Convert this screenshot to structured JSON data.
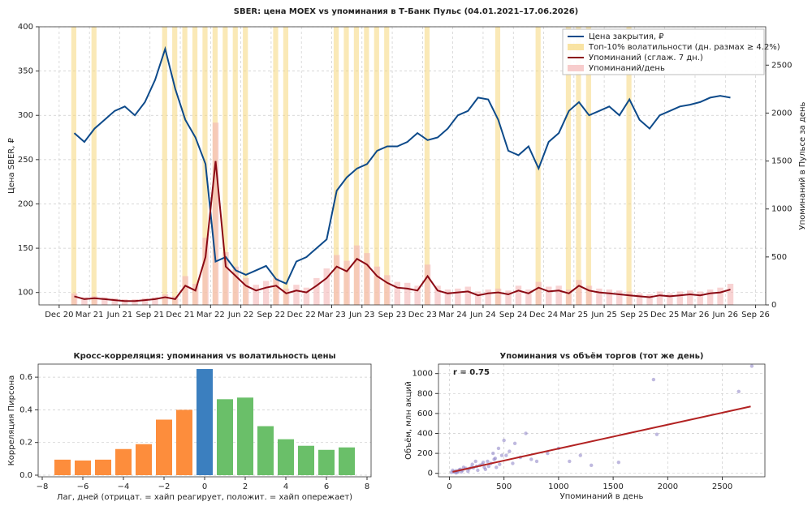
{
  "chart_data": [
    {
      "type": "line",
      "title": "SBER: цена MOEX vs упоминания в Т-Банк Пульс (04.01.2021–17.06.2026)",
      "ylabel": "Цена SBER, ₽",
      "y2label": "Упоминаний в Пульсе за день",
      "x": [
        "2021-01",
        "2021-02",
        "2021-03",
        "2021-04",
        "2021-05",
        "2021-06",
        "2021-07",
        "2021-08",
        "2021-09",
        "2021-10",
        "2021-11",
        "2021-12",
        "2022-01",
        "2022-02",
        "2022-03",
        "2022-04",
        "2022-05",
        "2022-06",
        "2022-07",
        "2022-08",
        "2022-09",
        "2022-10",
        "2022-11",
        "2022-12",
        "2023-01",
        "2023-02",
        "2023-03",
        "2023-04",
        "2023-05",
        "2023-06",
        "2023-07",
        "2023-08",
        "2023-09",
        "2023-10",
        "2023-11",
        "2023-12",
        "2024-01",
        "2024-02",
        "2024-03",
        "2024-04",
        "2024-05",
        "2024-06",
        "2024-07",
        "2024-08",
        "2024-09",
        "2024-10",
        "2024-11",
        "2024-12",
        "2025-01",
        "2025-02",
        "2025-03",
        "2025-04",
        "2025-05",
        "2025-06",
        "2025-07",
        "2025-08",
        "2025-09",
        "2025-10",
        "2025-11",
        "2025-12",
        "2026-01",
        "2026-02",
        "2026-03",
        "2026-04",
        "2026-05",
        "2026-06"
      ],
      "xlim": [
        "2020-10",
        "2026-10"
      ],
      "xticks": [
        {
          "value": "2020-12",
          "label": "Dec 20"
        },
        {
          "value": "2021-03",
          "label": "Mar 21"
        },
        {
          "value": "2021-06",
          "label": "Jun 21"
        },
        {
          "value": "2021-09",
          "label": "Sep 21"
        },
        {
          "value": "2021-12",
          "label": "Dec 21"
        },
        {
          "value": "2022-03",
          "label": "Mar 22"
        },
        {
          "value": "2022-06",
          "label": "Jun 22"
        },
        {
          "value": "2022-09",
          "label": "Sep 22"
        },
        {
          "value": "2022-12",
          "label": "Dec 22"
        },
        {
          "value": "2023-03",
          "label": "Mar 23"
        },
        {
          "value": "2023-06",
          "label": "Jun 23"
        },
        {
          "value": "2023-09",
          "label": "Sep 23"
        },
        {
          "value": "2023-12",
          "label": "Dec 23"
        },
        {
          "value": "2024-03",
          "label": "Mar 24"
        },
        {
          "value": "2024-06",
          "label": "Jun 24"
        },
        {
          "value": "2024-09",
          "label": "Sep 24"
        },
        {
          "value": "2024-12",
          "label": "Dec 24"
        },
        {
          "value": "2025-03",
          "label": "Mar 25"
        },
        {
          "value": "2025-06",
          "label": "Jun 25"
        },
        {
          "value": "2025-09",
          "label": "Sep 25"
        },
        {
          "value": "2025-12",
          "label": "Dec 25"
        },
        {
          "value": "2026-03",
          "label": "Mar 26"
        },
        {
          "value": "2026-06",
          "label": "Jun 26"
        },
        {
          "value": "2026-09",
          "label": "Sep 26"
        }
      ],
      "ylim": [
        86,
        400
      ],
      "yticks": [
        100,
        150,
        200,
        250,
        300,
        350,
        400
      ],
      "y2lim": [
        0,
        2900
      ],
      "y2ticks": [
        0,
        500,
        1000,
        1500,
        2000,
        2500
      ],
      "grid": true,
      "legend": "upper right",
      "series": [
        {
          "name": "Цена закрытия, ₽",
          "color": "#0d4a8a",
          "values": [
            280,
            270,
            285,
            295,
            305,
            310,
            300,
            315,
            340,
            375,
            330,
            295,
            275,
            245,
            135,
            140,
            125,
            120,
            125,
            130,
            115,
            110,
            135,
            140,
            150,
            160,
            215,
            230,
            240,
            245,
            260,
            265,
            265,
            270,
            280,
            272,
            275,
            285,
            300,
            305,
            320,
            318,
            295,
            260,
            255,
            265,
            240,
            270,
            280,
            305,
            315,
            300,
            305,
            310,
            300,
            318,
            295,
            285,
            300,
            305,
            310,
            312,
            315,
            320,
            322,
            320
          ]
        },
        {
          "name": "Упоминаний (сглаж. 7 дн.)",
          "color": "#8b0a14",
          "axis": "y2",
          "values": [
            90,
            60,
            70,
            60,
            50,
            40,
            40,
            50,
            60,
            80,
            60,
            200,
            150,
            500,
            1500,
            400,
            300,
            200,
            150,
            180,
            200,
            120,
            150,
            130,
            200,
            280,
            400,
            350,
            480,
            420,
            300,
            230,
            180,
            170,
            150,
            300,
            150,
            120,
            130,
            140,
            100,
            120,
            130,
            110,
            150,
            120,
            180,
            140,
            150,
            120,
            200,
            150,
            130,
            120,
            110,
            100,
            90,
            80,
            100,
            90,
            100,
            110,
            100,
            120,
            130,
            160
          ]
        },
        {
          "name": "Упоминаний/день",
          "color": "#f4b6b6",
          "axis": "y2",
          "type": "bar",
          "values": [
            120,
            80,
            90,
            80,
            70,
            60,
            60,
            70,
            80,
            110,
            90,
            300,
            220,
            700,
            1900,
            550,
            400,
            280,
            210,
            250,
            280,
            170,
            210,
            180,
            280,
            380,
            520,
            460,
            620,
            540,
            400,
            310,
            240,
            230,
            200,
            420,
            200,
            160,
            170,
            190,
            140,
            160,
            170,
            150,
            200,
            160,
            240,
            190,
            200,
            160,
            260,
            200,
            170,
            160,
            150,
            140,
            120,
            110,
            140,
            120,
            140,
            150,
            140,
            160,
            180,
            220
          ]
        }
      ],
      "highlight": {
        "name": "Топ-10% волатильности (дн. размах ≥ 4.2%)",
        "color": "#f6d77c",
        "x": [
          "2021-01",
          "2021-03",
          "2021-10",
          "2021-11",
          "2021-12",
          "2022-01",
          "2022-02",
          "2022-03",
          "2022-04",
          "2022-05",
          "2022-06",
          "2022-09",
          "2022-10",
          "2023-03",
          "2023-04",
          "2023-05",
          "2023-06",
          "2023-07",
          "2023-08",
          "2023-12",
          "2024-07",
          "2024-11",
          "2025-02",
          "2025-03",
          "2025-04",
          "2025-08"
        ]
      }
    },
    {
      "type": "bar",
      "title": "Кросс-корреляция: упоминания vs волатильность цены",
      "xlabel": "Лаг, дней  (отрицат. = хайп реагирует, положит. = хайп опережает)",
      "ylabel": "Корреляция Пирсона",
      "x": [
        -7,
        -6,
        -5,
        -4,
        -3,
        -2,
        -1,
        0,
        1,
        2,
        3,
        4,
        5,
        6,
        7
      ],
      "values": [
        0.095,
        0.09,
        0.095,
        0.16,
        0.19,
        0.34,
        0.4,
        0.65,
        0.465,
        0.475,
        0.3,
        0.22,
        0.18,
        0.155,
        0.17
      ],
      "colors": [
        "#fd8d3c",
        "#fd8d3c",
        "#fd8d3c",
        "#fd8d3c",
        "#fd8d3c",
        "#fd8d3c",
        "#fd8d3c",
        "#3b7fbf",
        "#6abf69",
        "#6abf69",
        "#6abf69",
        "#6abf69",
        "#6abf69",
        "#6abf69",
        "#6abf69"
      ],
      "xlim": [
        -8.2,
        8.2
      ],
      "xticks": [
        {
          "value": -8,
          "label": "−8"
        },
        {
          "value": -6,
          "label": "−6"
        },
        {
          "value": -4,
          "label": "−4"
        },
        {
          "value": -2,
          "label": "−2"
        },
        0,
        2,
        4,
        6,
        8
      ],
      "ylim": [
        -0.01,
        0.68
      ],
      "yticks": [
        {
          "value": 0,
          "label": "0.0"
        },
        0.2,
        0.4,
        0.6
      ],
      "grid": true
    },
    {
      "type": "scatter",
      "title": "Упоминания vs объём торгов (тот же день)",
      "xlabel": "Упоминаний в день",
      "ylabel": "Объём, млн акций",
      "annotation": "r = 0.75",
      "color": "#8a7fc4",
      "x": [
        20,
        40,
        60,
        80,
        100,
        120,
        150,
        180,
        200,
        220,
        250,
        280,
        300,
        320,
        350,
        380,
        400,
        420,
        450,
        480,
        500,
        550,
        600,
        650,
        700,
        750,
        800,
        900,
        1000,
        1100,
        1200,
        1300,
        1550,
        1900,
        1870,
        2650,
        2770,
        60,
        90,
        130,
        170,
        210,
        260,
        310,
        360,
        410,
        460,
        520,
        30,
        70,
        110,
        240,
        330,
        430,
        580
      ],
      "values": [
        10,
        15,
        25,
        20,
        40,
        30,
        50,
        45,
        60,
        55,
        70,
        80,
        90,
        60,
        120,
        100,
        200,
        150,
        250,
        180,
        330,
        220,
        300,
        160,
        400,
        140,
        120,
        200,
        250,
        120,
        180,
        80,
        110,
        390,
        940,
        820,
        1075,
        5,
        35,
        60,
        20,
        90,
        30,
        110,
        70,
        140,
        90,
        180,
        30,
        10,
        15,
        120,
        40,
        60,
        100
      ],
      "xlim": [
        -100,
        2890
      ],
      "xticks": [
        0,
        500,
        1000,
        1500,
        2000,
        2500
      ],
      "ylim": [
        -35,
        1095
      ],
      "yticks": [
        0,
        200,
        400,
        600,
        800,
        1000
      ],
      "grid": true,
      "trend": {
        "color": "#b22222",
        "x": [
          30,
          2760
        ],
        "values": [
          15,
          670
        ]
      }
    }
  ]
}
